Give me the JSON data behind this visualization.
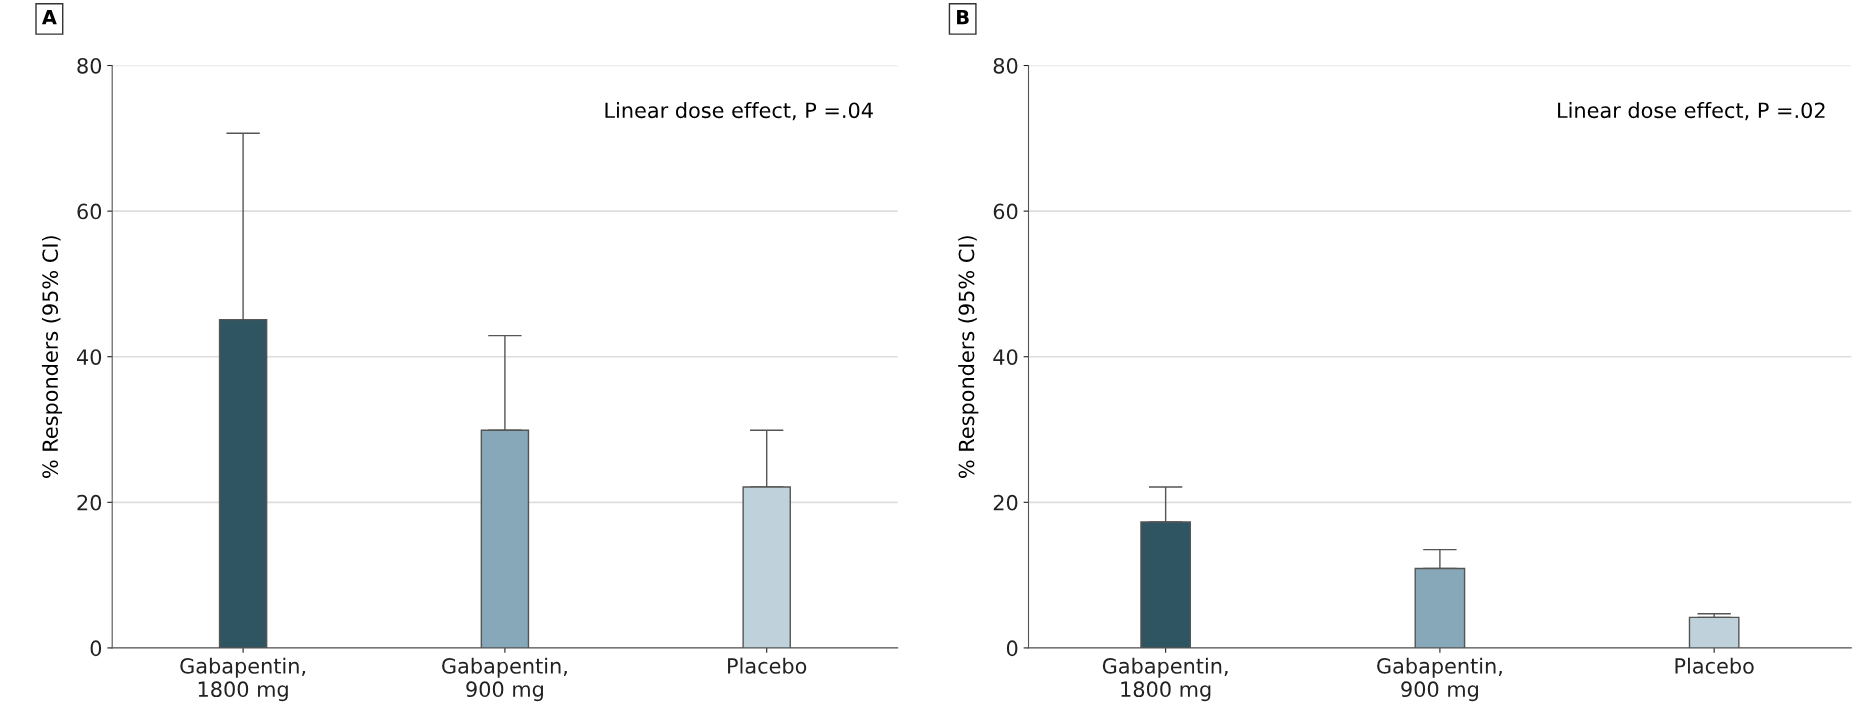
{
  "chart_data": [
    {
      "type": "bar",
      "title": "A",
      "ylabel": "% Responders (95% CI)",
      "categories": [
        "Gabapentin,\n1800 mg",
        "Gabapentin,\n900 mg",
        "Placebo"
      ],
      "values": [
        45.1,
        29.9,
        22.1
      ],
      "colors": [
        "#2f5563",
        "#87a8b8",
        "#bfd2dc"
      ],
      "errors": [
        [
          45.1,
          70.7
        ],
        [
          29.9,
          42.9
        ],
        [
          22.1,
          29.9
        ]
      ],
      "ylim": [
        0,
        80
      ],
      "yticks": [
        0,
        20,
        40,
        60,
        80
      ],
      "grid": "y",
      "annotations": [
        "Linear dose effect, P =.04"
      ]
    },
    {
      "type": "bar",
      "title": "B",
      "ylabel": "% Responders (95% CI)",
      "categories": [
        "Gabapentin,\n1800 mg",
        "Gabapentin,\n900 mg",
        "Placebo"
      ],
      "values": [
        17.3,
        10.9,
        4.2
      ],
      "colors": [
        "#2f5563",
        "#87a8b8",
        "#bfd2dc"
      ],
      "errors": [
        [
          17.3,
          22.1
        ],
        [
          10.9,
          13.5
        ],
        [
          4.2,
          4.7
        ]
      ],
      "ylim": [
        0,
        80
      ],
      "yticks": [
        0,
        20,
        40,
        60,
        80
      ],
      "grid": "y",
      "annotations": [
        "Linear dose effect, P =.02"
      ]
    }
  ]
}
